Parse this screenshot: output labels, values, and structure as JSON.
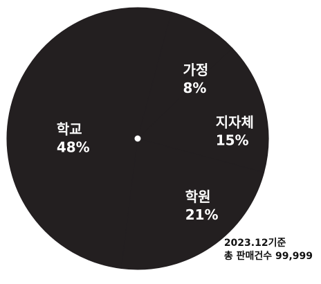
{
  "chart_data": {
    "type": "pie",
    "categories": [
      "학교",
      "가정",
      "지자체",
      "학원"
    ],
    "values": [
      48,
      8,
      15,
      21
    ],
    "value_labels": [
      "48%",
      "8%",
      "15%",
      "21%"
    ],
    "colors": {
      "slice_fill": "#231f20",
      "label_text": "#ffffff",
      "center_dot": "#ffffff"
    },
    "legend": "none"
  },
  "footnote": {
    "line1": "2023.12기준",
    "line2": "총 판매건수 99,999"
  }
}
